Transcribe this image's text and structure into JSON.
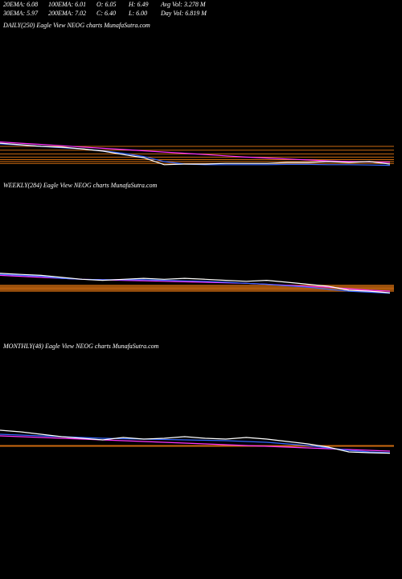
{
  "header": {
    "row1": [
      "20EMA: 6.08",
      "100EMA: 6.01",
      "O: 6.05",
      "H: 6.49",
      "Avg Vol: 3.278  M"
    ],
    "row2": [
      "30EMA: 5.97",
      "200EMA: 7.02",
      "C: 6.40",
      "L: 6.00",
      "Day Vol: 6.819 M"
    ]
  },
  "chart_data": [
    {
      "type": "line",
      "title": "DAILY(250) Eagle  View  NEOG charts MunafaSutra.com",
      "ylim": [
        5,
        12
      ],
      "levels": [
        9.2,
        8.6,
        8.0,
        7.5,
        7.1,
        6.8,
        6.5
      ],
      "level_color": "#cc6a10",
      "series": [
        {
          "color": "#ff33ff",
          "values": [
            9.9,
            9.7,
            9.5,
            9.3,
            9.1,
            8.9,
            8.7,
            8.5,
            8.3,
            8.1,
            7.9,
            7.7,
            7.5,
            7.35,
            7.2,
            7.05,
            6.9,
            6.8,
            6.75,
            6.7
          ]
        },
        {
          "color": "#3366ff",
          "values": [
            9.6,
            9.4,
            9.2,
            9.0,
            8.8,
            8.5,
            8.1,
            7.6,
            6.8,
            6.4,
            6.3,
            6.3,
            6.3,
            6.3,
            6.35,
            6.35,
            6.3,
            6.3,
            6.25,
            6.2
          ]
        },
        {
          "color": "#ffffff",
          "values": [
            9.7,
            9.45,
            9.2,
            9.07,
            8.8,
            8.45,
            7.9,
            7.4,
            6.3,
            6.4,
            6.4,
            6.5,
            6.5,
            6.5,
            6.65,
            6.65,
            6.8,
            6.65,
            6.8,
            6.4
          ]
        }
      ]
    },
    {
      "type": "line",
      "title": "WEEKLY(284) Eagle  View  NEOG charts MunafaSutra.com",
      "ylim": [
        0,
        30
      ],
      "levels": [
        14,
        13,
        12,
        11,
        10,
        9,
        8
      ],
      "level_color": "#cc6a10",
      "series": [
        {
          "color": "#ff33ff",
          "values": [
            24,
            23,
            22,
            21,
            20,
            19.5,
            19,
            18.5,
            18,
            17.5,
            17,
            16.5,
            16,
            15,
            14,
            13,
            12,
            10.5,
            9,
            8
          ]
        },
        {
          "color": "#3366ff",
          "values": [
            25,
            24,
            23,
            21,
            20,
            19.5,
            19.5,
            19.5,
            19,
            18.5,
            18,
            17,
            16,
            15,
            13.5,
            12,
            10,
            8,
            7,
            6
          ]
        },
        {
          "color": "#ffffff",
          "values": [
            26,
            25,
            24,
            22,
            20,
            19,
            20,
            21,
            20,
            21,
            20,
            19,
            18,
            19,
            17,
            15,
            13,
            9,
            8,
            6.4
          ]
        }
      ]
    },
    {
      "type": "line",
      "title": "MONTHLY(48) Eagle  View  NEOG charts MunafaSutra.com",
      "ylim": [
        0,
        40
      ],
      "levels": [
        16,
        15
      ],
      "level_color": "#cc6a10",
      "series": [
        {
          "color": "#ff33ff",
          "values": [
            28,
            27,
            26,
            25,
            24,
            23,
            22,
            21,
            20,
            19,
            18,
            17,
            16,
            15,
            14,
            13,
            12,
            11,
            10,
            9
          ]
        },
        {
          "color": "#3366ff",
          "values": [
            30,
            29,
            28,
            27,
            26,
            25,
            24.5,
            24,
            23.5,
            23,
            22.5,
            22,
            21,
            20,
            18,
            16,
            13,
            10,
            8,
            7
          ]
        },
        {
          "color": "#ffffff",
          "values": [
            35,
            33,
            30,
            27,
            25,
            23,
            26,
            24,
            25,
            27,
            25,
            24,
            26,
            24,
            21,
            18,
            14,
            8,
            7,
            6.4
          ]
        }
      ]
    }
  ]
}
